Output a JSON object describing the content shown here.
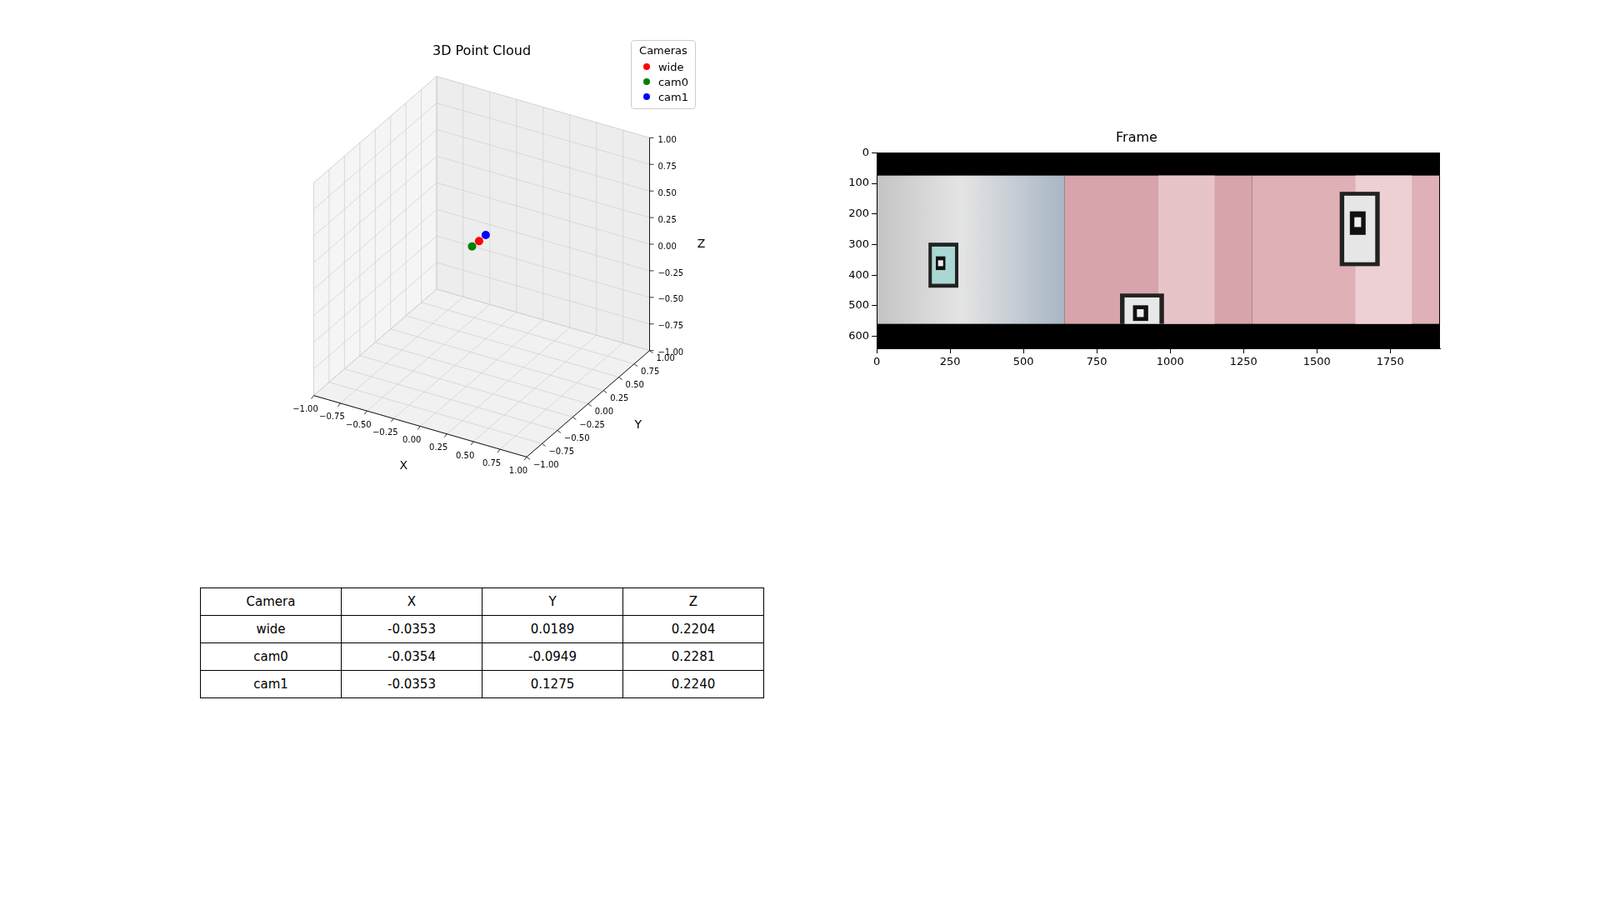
{
  "chart_data": [
    {
      "type": "scatter3d",
      "title": "3D Point Cloud",
      "x_label": "X",
      "y_label": "Y",
      "z_label": "Z",
      "legend_title": "Cameras",
      "legend": "upper right",
      "grid": true,
      "xlim": [
        -1,
        1
      ],
      "ylim": [
        -1,
        1
      ],
      "zlim": [
        -1,
        1
      ],
      "xticks": [
        {
          "value": -1,
          "label": "−1.00"
        },
        {
          "value": -0.75,
          "label": "−0.75"
        },
        {
          "value": -0.5,
          "label": "−0.50"
        },
        {
          "value": -0.25,
          "label": "−0.25"
        },
        {
          "value": 0,
          "label": "0.00"
        },
        {
          "value": 0.25,
          "label": "0.25"
        },
        {
          "value": 0.5,
          "label": "0.50"
        },
        {
          "value": 0.75,
          "label": "0.75"
        },
        {
          "value": 1,
          "label": "1.00"
        }
      ],
      "yticks": [
        {
          "value": -1,
          "label": "−1.00"
        },
        {
          "value": -0.75,
          "label": "−0.75"
        },
        {
          "value": -0.5,
          "label": "−0.50"
        },
        {
          "value": -0.25,
          "label": "−0.25"
        },
        {
          "value": 0,
          "label": "0.00"
        },
        {
          "value": 0.25,
          "label": "0.25"
        },
        {
          "value": 0.5,
          "label": "0.50"
        },
        {
          "value": 0.75,
          "label": "0.75"
        },
        {
          "value": 1,
          "label": "1.00"
        }
      ],
      "zticks": [
        {
          "value": -1,
          "label": "−1.00"
        },
        {
          "value": -0.75,
          "label": "−0.75"
        },
        {
          "value": -0.5,
          "label": "−0.50"
        },
        {
          "value": -0.25,
          "label": "−0.25"
        },
        {
          "value": 0,
          "label": "0.00"
        },
        {
          "value": 0.25,
          "label": "0.25"
        },
        {
          "value": 0.5,
          "label": "0.50"
        },
        {
          "value": 0.75,
          "label": "0.75"
        },
        {
          "value": 1,
          "label": "1.00"
        }
      ],
      "series": [
        {
          "name": "wide",
          "color": "red",
          "x": [
            -0.0353
          ],
          "y": [
            0.0189
          ],
          "z": [
            0.2204
          ]
        },
        {
          "name": "cam0",
          "color": "green",
          "x": [
            -0.0354
          ],
          "y": [
            -0.0949
          ],
          "z": [
            0.2281
          ]
        },
        {
          "name": "cam1",
          "color": "blue",
          "x": [
            -0.0353
          ],
          "y": [
            0.1275
          ],
          "z": [
            0.224
          ]
        }
      ]
    },
    {
      "type": "image",
      "title": "Frame",
      "grid": false,
      "xlim": [
        -0.5,
        1919.5
      ],
      "ylim": [
        639.5,
        -0.5
      ],
      "xticks": [
        0,
        250,
        500,
        750,
        1000,
        1250,
        1500,
        1750
      ],
      "yticks": [
        0,
        100,
        200,
        300,
        400,
        500,
        600
      ]
    }
  ],
  "table": {
    "header": [
      "Camera",
      "X",
      "Y",
      "Z"
    ],
    "rows": [
      [
        "wide",
        "-0.0353",
        "0.0189",
        "0.2204"
      ],
      [
        "cam0",
        "-0.0354",
        "-0.0949",
        "0.2281"
      ],
      [
        "cam1",
        "-0.0353",
        "0.1275",
        "0.2240"
      ]
    ]
  }
}
